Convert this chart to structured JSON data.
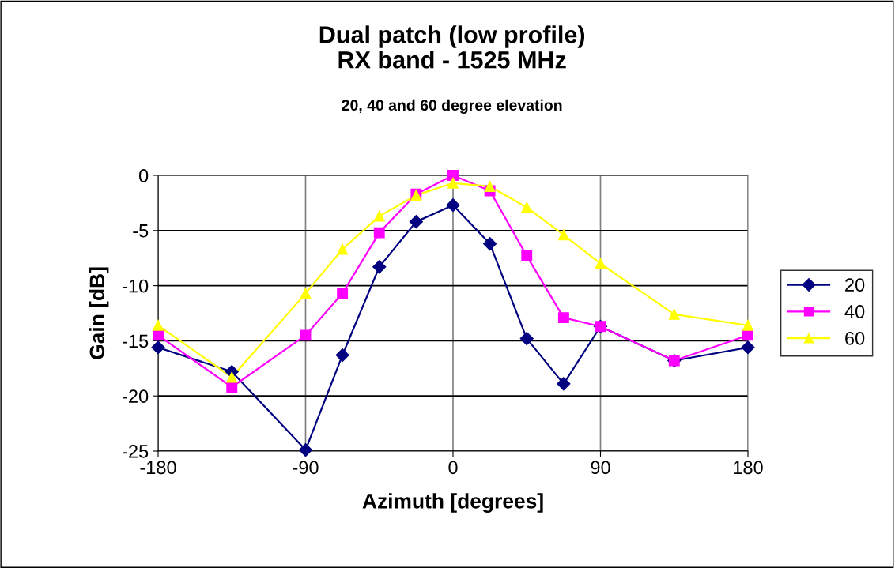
{
  "chart_data": {
    "type": "line",
    "title": "Dual patch (low profile)\nRX band - 1525 MHz",
    "subtitle": "20, 40 and 60 degree elevation",
    "xlabel": "Azimuth [degrees]",
    "ylabel": "Gain [dB]",
    "x": [
      -180,
      -135,
      -90,
      -67.5,
      -45,
      -22.5,
      0,
      22.5,
      45,
      67.5,
      90,
      135,
      180
    ],
    "series": [
      {
        "name": "20",
        "color": "#000080",
        "marker": "diamond",
        "values": [
          -15.6,
          -17.8,
          -24.9,
          -16.3,
          -8.3,
          -4.2,
          -2.7,
          -6.2,
          -14.8,
          -18.9,
          -13.7,
          -16.8,
          -15.6
        ]
      },
      {
        "name": "40",
        "color": "#ff00ff",
        "marker": "square",
        "values": [
          -14.5,
          -19.2,
          -14.5,
          -10.7,
          -5.2,
          -1.7,
          0,
          -1.4,
          -7.3,
          -12.9,
          -13.7,
          -16.8,
          -14.5
        ]
      },
      {
        "name": "60",
        "color": "#ffff00",
        "marker": "triangle",
        "values": [
          -13.6,
          -18.3,
          -10.7,
          -6.7,
          -3.7,
          -1.8,
          -0.7,
          -1.0,
          -2.9,
          -5.4,
          -8.0,
          -12.6,
          -13.6
        ]
      }
    ],
    "xlim": [
      -180,
      180
    ],
    "xticks": [
      -180,
      -90,
      0,
      90,
      180
    ],
    "ylim": [
      -25,
      0
    ],
    "yticks": [
      -25,
      -20,
      -15,
      -10,
      -5,
      0
    ],
    "grid": true,
    "legend": "right",
    "line_style": "solid"
  }
}
